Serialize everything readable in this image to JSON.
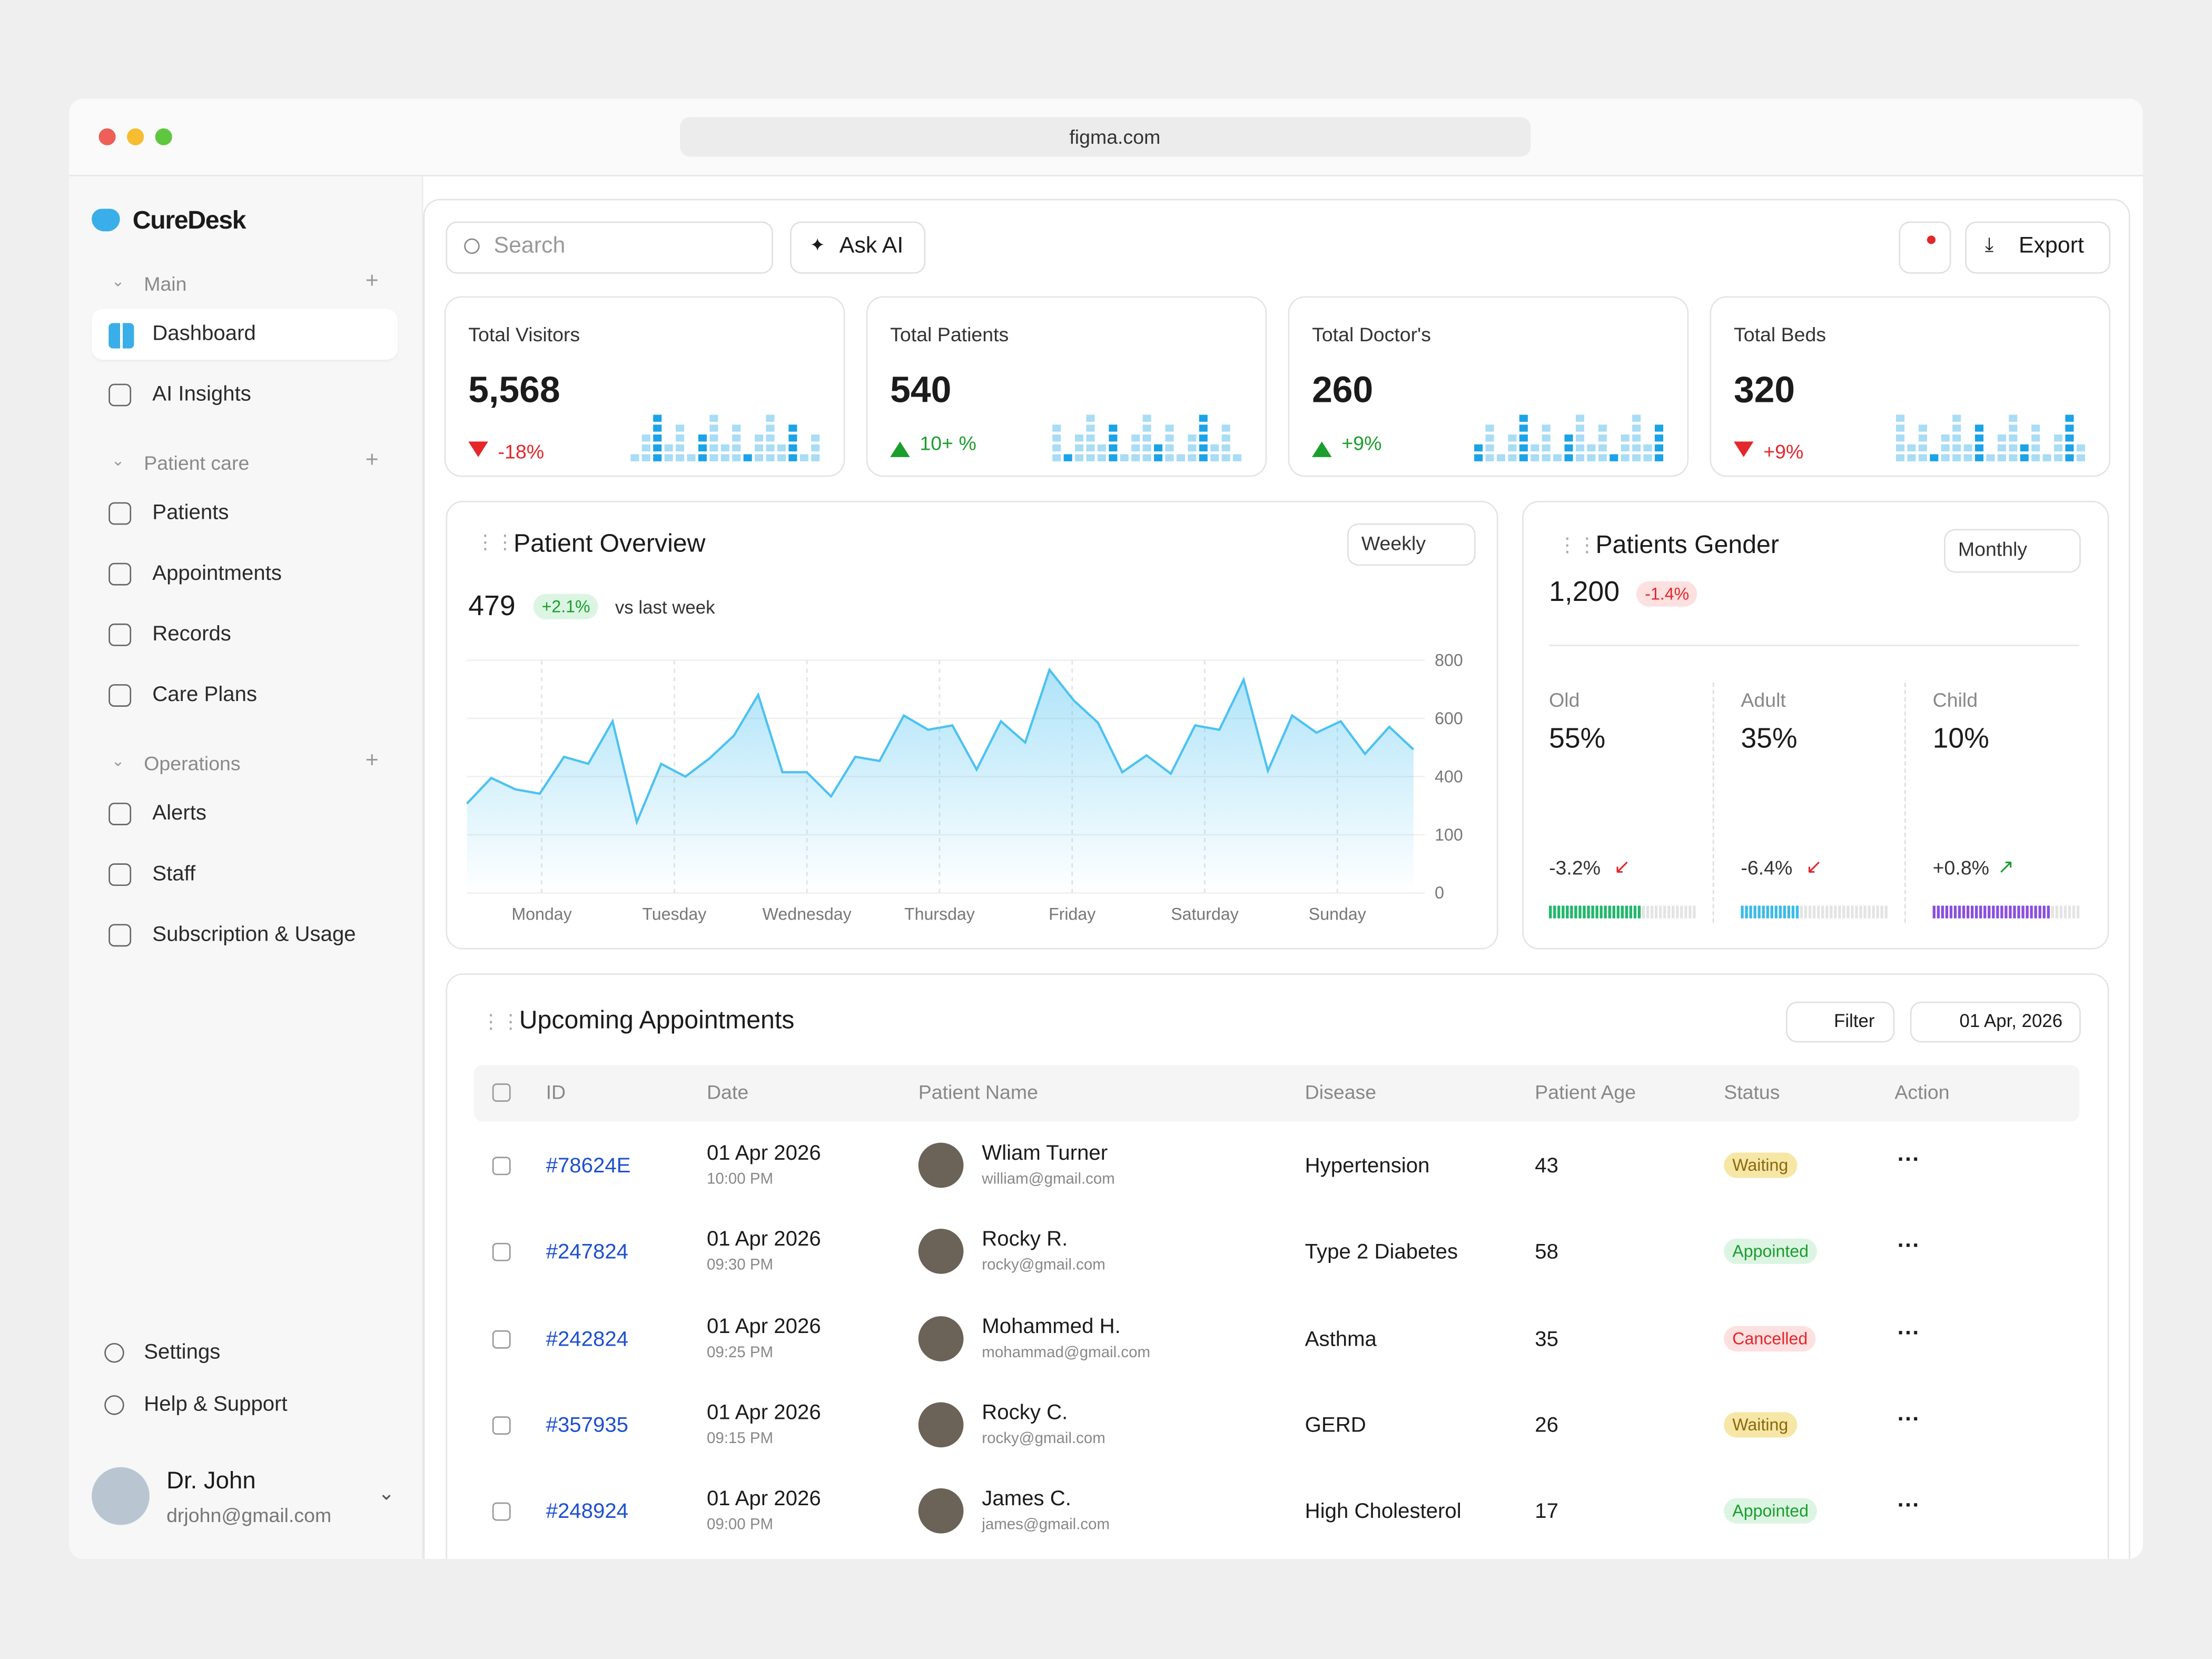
{
  "browser": {
    "url": "figma.com"
  },
  "sidebar": {
    "brand": "CureDesk",
    "sections": [
      {
        "title": "Main",
        "items": [
          "Dashboard",
          "AI Insights"
        ]
      },
      {
        "title": "Patient care",
        "items": [
          "Patients",
          "Appointments",
          "Records",
          "Care Plans"
        ]
      },
      {
        "title": "Operations",
        "items": [
          "Alerts",
          "Staff",
          "Subscription & Usage"
        ]
      }
    ],
    "footer": [
      "Settings",
      "Help & Support"
    ],
    "user": {
      "name": "Dr. John",
      "email": "drjohn@gmail.com"
    }
  },
  "toolbar": {
    "search": "Search",
    "ask": "Ask AI",
    "export": "Export"
  },
  "stats": [
    {
      "label": "Total Visitors",
      "value": "5,568",
      "change": "-18%",
      "color": "#e5262b"
    },
    {
      "label": "Total Patients",
      "value": "540",
      "change": "10+ %",
      "color": "#1a9e2c"
    },
    {
      "label": "Total Doctor's",
      "value": "260",
      "change": "+9%",
      "color": "#1a9e2c"
    },
    {
      "label": "Total Beds",
      "value": "320",
      "change": "+9%",
      "color": "#e5262b"
    }
  ],
  "overview": {
    "title": "Patient Overview",
    "period": "Weekly",
    "total": "479",
    "change": "+2.1%",
    "note": "vs last week",
    "chart_data": {
      "type": "line",
      "color": "#4cc2f2",
      "values": [
        261,
        393,
        334,
        312,
        468,
        444,
        590,
        166,
        444,
        400,
        463,
        541,
        681,
        415,
        415,
        298,
        468,
        454,
        610,
        561,
        576,
        424,
        590,
        517,
        767,
        662,
        585,
        415,
        473,
        410,
        576,
        561,
        733,
        420,
        610,
        551,
        590,
        478,
        571,
        493
      ],
      "x_labels": [
        "Monday",
        "Tuesday",
        "Wednesday",
        "Thursday",
        "Friday",
        "Saturday",
        "Sunday"
      ],
      "ylim": [
        0,
        800
      ],
      "yticks": [
        800,
        600,
        400,
        100,
        0
      ],
      "grid": true
    }
  },
  "gender": {
    "title": "Patients Gender",
    "period": "Monthly",
    "total": "1,200",
    "change": "-1.4%",
    "groups": [
      {
        "name": "Old",
        "share": "55%",
        "change": "-3.2%",
        "color": "#1fb86a"
      },
      {
        "name": "Adult",
        "share": "35%",
        "change": "-6.4%",
        "color": "#3dbbe8"
      },
      {
        "name": "Child",
        "share": "10%",
        "change": "+0.8%",
        "color": "#8a4fe0"
      }
    ]
  },
  "appointments": {
    "title": "Upcoming Appointments",
    "filter": "Filter",
    "date": "01 Apr, 2026",
    "columns": [
      "ID",
      "Date",
      "Patient Name",
      "Disease",
      "Patient Age",
      "Status",
      "Action"
    ],
    "rows": [
      {
        "id": "#78624E",
        "date": "01 Apr 2026",
        "time": "10:00 PM",
        "name": "Wliam Turner",
        "email": "william@gmail.com",
        "disease": "Hypertension",
        "age": 43,
        "status": "Waiting",
        "status_color": "#f7e7a6"
      },
      {
        "id": "#247824",
        "date": "01 Apr 2026",
        "time": "09:30 PM",
        "name": "Rocky R.",
        "email": "rocky@gmail.com",
        "disease": "Type 2 Diabetes",
        "age": 58,
        "status": "Appointed",
        "status_color": "#dcf5e3"
      },
      {
        "id": "#242824",
        "date": "01 Apr 2026",
        "time": "09:25 PM",
        "name": "Mohammed H.",
        "email": "mohammad@gmail.com",
        "disease": "Asthma",
        "age": 35,
        "status": "Cancelled",
        "status_color": "#fde0e0"
      },
      {
        "id": "#357935",
        "date": "01 Apr 2026",
        "time": "09:15 PM",
        "name": "Rocky C.",
        "email": "rocky@gmail.com",
        "disease": "GERD",
        "age": 26,
        "status": "Waiting",
        "status_color": "#f7e7a6"
      },
      {
        "id": "#248924",
        "date": "01 Apr 2026",
        "time": "09:00 PM",
        "name": "James C.",
        "email": "james@gmail.com",
        "disease": "High Cholesterol",
        "age": 17,
        "status": "Appointed",
        "status_color": "#dcf5e3"
      }
    ]
  }
}
